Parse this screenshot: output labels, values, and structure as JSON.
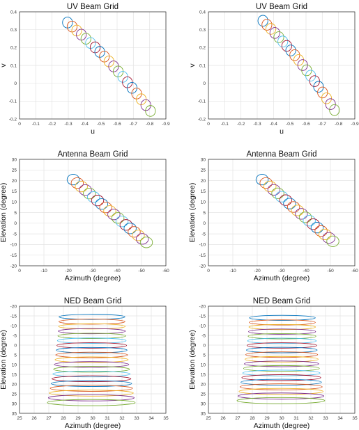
{
  "palette": [
    "#0072BD",
    "#D95319",
    "#EDB120",
    "#7E2F8E",
    "#77AC30",
    "#4DBEEE",
    "#A2142F"
  ],
  "chart_data": [
    {
      "type": "scatter",
      "title": "UV Beam Grid",
      "xlabel": "u",
      "ylabel": "v",
      "xlim": [
        0,
        -0.9
      ],
      "ylim": [
        -0.2,
        0.4
      ],
      "xticks": [
        0,
        -0.1,
        -0.2,
        -0.3,
        -0.4,
        -0.5,
        -0.6,
        -0.7,
        -0.8,
        -0.9
      ],
      "yticks": [
        -0.2,
        -0.1,
        0,
        0.1,
        0.2,
        0.3,
        0.4
      ],
      "xtick_labels": [
        "0",
        "-0.1",
        "-0.2",
        "-0.3",
        "-0.4",
        "-0.5",
        "-0.6",
        "-0.7",
        "-0.8",
        "-0.9"
      ],
      "ytick_labels": [
        "-0.2",
        "-0.1",
        "0",
        "0.1",
        "0.2",
        "0.3",
        "0.4"
      ],
      "grid": true,
      "beams": {
        "start": [
          -0.295,
          0.34
        ],
        "end": [
          -0.805,
          -0.155
        ],
        "count": 19,
        "radius": [
          0.035,
          0.026
        ],
        "bend": 0.03
      }
    },
    {
      "type": "scatter",
      "title": "UV Beam Grid",
      "xlabel": "u",
      "ylabel": "v",
      "xlim": [
        0,
        -0.9
      ],
      "ylim": [
        -0.2,
        0.4
      ],
      "xticks": [
        0,
        -0.1,
        -0.2,
        -0.3,
        -0.4,
        -0.5,
        -0.6,
        -0.7,
        -0.8,
        -0.9
      ],
      "yticks": [
        -0.2,
        -0.1,
        0,
        0.1,
        0.2,
        0.3,
        0.4
      ],
      "xtick_labels": [
        "0",
        "-0.1",
        "-0.2",
        "-0.3",
        "-0.4",
        "-0.5",
        "-0.6",
        "-0.7",
        "-0.8",
        "-0.9"
      ],
      "ytick_labels": [
        "-0.2",
        "-0.1",
        "0",
        "0.1",
        "0.2",
        "0.3",
        "0.4"
      ],
      "grid": true,
      "beams": {
        "start": [
          -0.335,
          0.35
        ],
        "end": [
          -0.775,
          -0.15
        ],
        "count": 19,
        "radius": [
          0.035,
          0.026
        ],
        "bend": 0.03
      }
    },
    {
      "type": "scatter",
      "title": "Antenna Beam Grid",
      "xlabel": "Azimuth (degree)",
      "ylabel": "Elevation (degree)",
      "xlim": [
        0,
        -60
      ],
      "ylim": [
        -20,
        30
      ],
      "xticks": [
        0,
        -10,
        -20,
        -30,
        -40,
        -50,
        -60
      ],
      "yticks": [
        -20,
        -15,
        -10,
        -5,
        0,
        5,
        10,
        15,
        20,
        25,
        30
      ],
      "xtick_labels": [
        "0",
        "-10",
        "-20",
        "-30",
        "-40",
        "-50",
        "-60"
      ],
      "ytick_labels": [
        "-20",
        "-15",
        "-10",
        "-5",
        "0",
        "5",
        "10",
        "15",
        "20",
        "25",
        "30"
      ],
      "grid": true,
      "beams": {
        "start": [
          -22,
          20.5
        ],
        "end": [
          -52,
          -9
        ],
        "count": 19,
        "radius": [
          3.0,
          2.0
        ],
        "bend": 0
      }
    },
    {
      "type": "scatter",
      "title": "Antenna Beam Grid",
      "xlabel": "Azimuth (degree)",
      "ylabel": "Elevation (degree)",
      "xlim": [
        0,
        -60
      ],
      "ylim": [
        -20,
        30
      ],
      "xticks": [
        0,
        -10,
        -20,
        -30,
        -40,
        -50,
        -60
      ],
      "yticks": [
        -20,
        -15,
        -10,
        -5,
        0,
        5,
        10,
        15,
        20,
        25,
        30
      ],
      "xtick_labels": [
        "0",
        "-10",
        "-20",
        "-30",
        "-40",
        "-50",
        "-60"
      ],
      "ytick_labels": [
        "-20",
        "-15",
        "-10",
        "-5",
        "0",
        "5",
        "10",
        "15",
        "20",
        "25",
        "30"
      ],
      "grid": true,
      "beams": {
        "start": [
          -22,
          20.5
        ],
        "end": [
          -51,
          -8.5
        ],
        "count": 19,
        "radius": [
          3.0,
          2.0
        ],
        "bend": 0
      }
    },
    {
      "type": "scatter",
      "title": "NED Beam Grid",
      "xlabel": "Azimuth (degree)",
      "ylabel": "Elevation (degree)",
      "xlim": [
        25,
        35
      ],
      "ylim": [
        -20,
        35
      ],
      "y_reversed": true,
      "xticks": [
        25,
        26,
        27,
        28,
        29,
        30,
        31,
        32,
        33,
        34,
        35
      ],
      "yticks": [
        -20,
        -15,
        -10,
        -5,
        0,
        5,
        10,
        15,
        20,
        25,
        30,
        35
      ],
      "xtick_labels": [
        "25",
        "26",
        "27",
        "28",
        "29",
        "30",
        "31",
        "32",
        "33",
        "34",
        "35"
      ],
      "ytick_labels": [
        "-20",
        "-15",
        "-10",
        "-5",
        "0",
        "5",
        "10",
        "15",
        "20",
        "25",
        "30",
        "35"
      ],
      "grid": true,
      "rings": {
        "count": 19,
        "y_start": -14.5,
        "y_end": 29.5,
        "cx_start": 29.95,
        "cx_end": 29.9,
        "rx_start": 2.25,
        "rx_end": 3.0,
        "ry_start": 1.3,
        "ry_end": 1.6
      }
    },
    {
      "type": "scatter",
      "title": "NED Beam Grid",
      "xlabel": "Azimuth (degree)",
      "ylabel": "Elevation (degree)",
      "xlim": [
        25,
        35
      ],
      "ylim": [
        -20,
        35
      ],
      "y_reversed": true,
      "xticks": [
        25,
        26,
        27,
        28,
        29,
        30,
        31,
        32,
        33,
        34,
        35
      ],
      "yticks": [
        -20,
        -15,
        -10,
        -5,
        0,
        5,
        10,
        15,
        20,
        25,
        30,
        35
      ],
      "xtick_labels": [
        "25",
        "26",
        "27",
        "28",
        "29",
        "30",
        "31",
        "32",
        "33",
        "34",
        "35"
      ],
      "ytick_labels": [
        "-20",
        "-15",
        "-10",
        "-5",
        "0",
        "5",
        "10",
        "15",
        "20",
        "25",
        "30",
        "35"
      ],
      "grid": true,
      "rings": {
        "count": 19,
        "y_start": -14.0,
        "y_end": 28.5,
        "cx_start": 30.05,
        "cx_end": 29.95,
        "rx_start": 2.25,
        "rx_end": 3.0,
        "ry_start": 1.3,
        "ry_end": 1.6
      }
    }
  ]
}
